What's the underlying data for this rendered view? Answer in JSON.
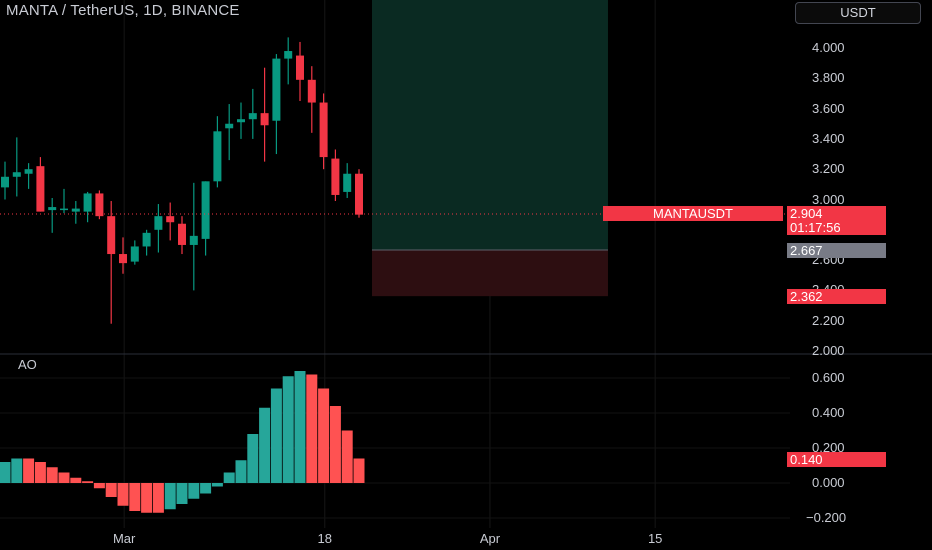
{
  "header": {
    "title": "MANTA / TetherUS, 1D, BINANCE",
    "currency": "USDT"
  },
  "colors": {
    "up": "#089981",
    "down": "#f23645",
    "ao_up": "#26a69a",
    "ao_down": "#ff5252",
    "profit_zone": "#0a2a22",
    "loss_zone": "#2d0e11",
    "price_tag": "#f23645",
    "entry_tag": "#787b86"
  },
  "chart_data": [
    {
      "type": "candlestick",
      "title": "MANTA / TetherUS, 1D, BINANCE",
      "symbol": "MANTAUSDT",
      "ylim": [
        2.0,
        4.1
      ],
      "yticks": [
        "4.000",
        "3.800",
        "3.600",
        "3.400",
        "3.200",
        "3.000",
        "2.600",
        "2.400",
        "2.200",
        "2.000"
      ],
      "xticks": [
        {
          "label": "Mar",
          "index": 10.1
        },
        {
          "label": "18",
          "index": 27.1
        },
        {
          "label": "Apr",
          "index": 41.1
        },
        {
          "label": "15",
          "index": 55.1
        }
      ],
      "candles": [
        {
          "o": 3.08,
          "h": 3.25,
          "l": 3.0,
          "c": 3.15
        },
        {
          "o": 3.15,
          "h": 3.41,
          "l": 3.02,
          "c": 3.18
        },
        {
          "o": 3.17,
          "h": 3.24,
          "l": 3.07,
          "c": 3.2
        },
        {
          "o": 3.22,
          "h": 3.28,
          "l": 2.92,
          "c": 2.92
        },
        {
          "o": 2.93,
          "h": 3.01,
          "l": 2.78,
          "c": 2.95
        },
        {
          "o": 2.93,
          "h": 3.07,
          "l": 2.91,
          "c": 2.94
        },
        {
          "o": 2.92,
          "h": 2.99,
          "l": 2.84,
          "c": 2.94
        },
        {
          "o": 2.92,
          "h": 3.05,
          "l": 2.85,
          "c": 3.04
        },
        {
          "o": 3.04,
          "h": 3.06,
          "l": 2.87,
          "c": 2.89
        },
        {
          "o": 2.89,
          "h": 2.99,
          "l": 2.18,
          "c": 2.64
        },
        {
          "o": 2.64,
          "h": 2.75,
          "l": 2.51,
          "c": 2.58
        },
        {
          "o": 2.59,
          "h": 2.73,
          "l": 2.57,
          "c": 2.69
        },
        {
          "o": 2.69,
          "h": 2.8,
          "l": 2.63,
          "c": 2.78
        },
        {
          "o": 2.8,
          "h": 2.97,
          "l": 2.65,
          "c": 2.89
        },
        {
          "o": 2.89,
          "h": 2.98,
          "l": 2.73,
          "c": 2.85
        },
        {
          "o": 2.84,
          "h": 2.89,
          "l": 2.64,
          "c": 2.7
        },
        {
          "o": 2.7,
          "h": 3.11,
          "l": 2.4,
          "c": 2.76
        },
        {
          "o": 2.74,
          "h": 3.12,
          "l": 2.63,
          "c": 3.12
        },
        {
          "o": 3.12,
          "h": 3.55,
          "l": 3.08,
          "c": 3.45
        },
        {
          "o": 3.47,
          "h": 3.63,
          "l": 3.26,
          "c": 3.5
        },
        {
          "o": 3.51,
          "h": 3.64,
          "l": 3.4,
          "c": 3.53
        },
        {
          "o": 3.53,
          "h": 3.73,
          "l": 3.4,
          "c": 3.57
        },
        {
          "o": 3.57,
          "h": 3.87,
          "l": 3.25,
          "c": 3.49
        },
        {
          "o": 3.52,
          "h": 3.96,
          "l": 3.3,
          "c": 3.93
        },
        {
          "o": 3.93,
          "h": 4.07,
          "l": 3.76,
          "c": 3.98
        },
        {
          "o": 3.95,
          "h": 4.04,
          "l": 3.65,
          "c": 3.79
        },
        {
          "o": 3.79,
          "h": 3.88,
          "l": 3.44,
          "c": 3.64
        },
        {
          "o": 3.64,
          "h": 3.7,
          "l": 3.2,
          "c": 3.28
        },
        {
          "o": 3.27,
          "h": 3.33,
          "l": 2.99,
          "c": 3.03
        },
        {
          "o": 3.05,
          "h": 3.24,
          "l": 3.01,
          "c": 3.17
        },
        {
          "o": 3.17,
          "h": 3.2,
          "l": 2.88,
          "c": 2.9
        }
      ],
      "last_price": {
        "symbol": "MANTAUSDT",
        "price": "2.904",
        "countdown": "01:17:56",
        "value": 2.904
      },
      "position": {
        "entry": {
          "label": "2.667",
          "value": 2.667
        },
        "target": 3.9,
        "stop": {
          "label": "2.362",
          "value": 2.362
        },
        "start_index": 31.1,
        "end_index": 51.1
      }
    },
    {
      "type": "bar",
      "title": "AO",
      "ylim": [
        -0.24,
        0.72
      ],
      "yticks": [
        "0.600",
        "0.400",
        "0.200",
        "0.000",
        "−0.200"
      ],
      "values": [
        0.12,
        0.14,
        0.14,
        0.12,
        0.09,
        0.06,
        0.03,
        0.01,
        -0.03,
        -0.08,
        -0.13,
        -0.16,
        -0.17,
        -0.17,
        -0.15,
        -0.12,
        -0.09,
        -0.06,
        -0.02,
        0.06,
        0.13,
        0.28,
        0.43,
        0.54,
        0.61,
        0.64,
        0.62,
        0.54,
        0.44,
        0.3,
        0.14
      ],
      "colors": [
        "up",
        "up",
        "down",
        "down",
        "down",
        "down",
        "down",
        "down",
        "down",
        "down",
        "down",
        "down",
        "down",
        "down",
        "up",
        "up",
        "up",
        "up",
        "up",
        "up",
        "up",
        "up",
        "up",
        "up",
        "up",
        "up",
        "down",
        "down",
        "down",
        "down",
        "down"
      ],
      "last_value": {
        "label": "0.140",
        "value": 0.14
      }
    }
  ]
}
